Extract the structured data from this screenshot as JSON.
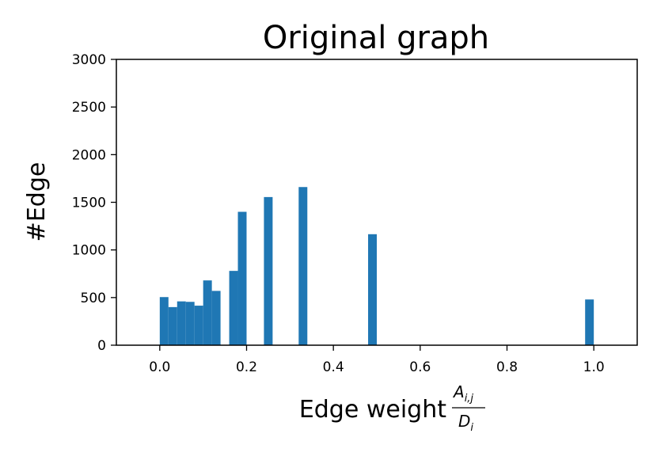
{
  "chart_data": {
    "type": "bar",
    "title": "Original graph",
    "xlabel": "Edge weight",
    "xlabel_fraction": {
      "numerator": "A",
      "numerator_sub": "i,j",
      "denominator": "D",
      "denominator_sub": "i"
    },
    "ylabel": "#Edge",
    "xlim": [
      -0.1,
      1.1
    ],
    "ylim": [
      0,
      3000
    ],
    "xticks": [
      "0.0",
      "0.2",
      "0.4",
      "0.6",
      "0.8",
      "1.0"
    ],
    "yticks": [
      "0",
      "500",
      "1000",
      "1500",
      "2000",
      "2500",
      "3000"
    ],
    "grid": false,
    "bin_width": 0.02,
    "bars": [
      {
        "x0": 0.0,
        "value": 505
      },
      {
        "x0": 0.02,
        "value": 400
      },
      {
        "x0": 0.04,
        "value": 460
      },
      {
        "x0": 0.06,
        "value": 455
      },
      {
        "x0": 0.08,
        "value": 415
      },
      {
        "x0": 0.1,
        "value": 680
      },
      {
        "x0": 0.12,
        "value": 570
      },
      {
        "x0": 0.16,
        "value": 780
      },
      {
        "x0": 0.18,
        "value": 1400
      },
      {
        "x0": 0.24,
        "value": 1555
      },
      {
        "x0": 0.32,
        "value": 1660
      },
      {
        "x0": 0.48,
        "value": 1165
      },
      {
        "x0": 0.98,
        "value": 480
      }
    ],
    "bar_color": "#1f77b4"
  }
}
